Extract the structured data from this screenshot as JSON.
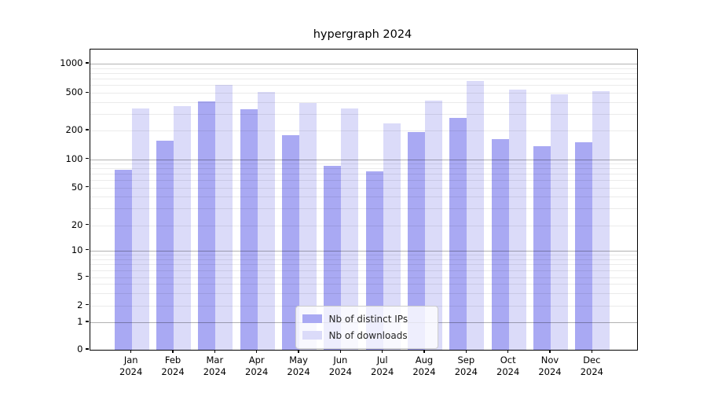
{
  "title": "hypergraph 2024",
  "chart_data": {
    "type": "bar",
    "categories": [
      "Jan",
      "Feb",
      "Mar",
      "Apr",
      "May",
      "Jun",
      "Jul",
      "Aug",
      "Sep",
      "Oct",
      "Nov",
      "Dec"
    ],
    "year_label": "2024",
    "series": [
      {
        "name": "Nb of distinct IPs",
        "color": "#a9a9f3",
        "values": [
          78,
          155,
          405,
          335,
          177,
          86,
          74,
          193,
          270,
          164,
          137,
          152
        ]
      },
      {
        "name": "Nb of downloads",
        "color": "#dbdbf9",
        "values": [
          345,
          365,
          600,
          510,
          390,
          345,
          240,
          415,
          665,
          540,
          480,
          525
        ]
      }
    ],
    "y_scale": "symlog",
    "yticks": [
      0,
      1,
      2,
      5,
      10,
      20,
      50,
      100,
      200,
      500,
      1000
    ],
    "ylim": [
      0,
      1400
    ],
    "grid": "horizontal major and minor",
    "legend_position": "lower center",
    "colors": {
      "spine": "#000000",
      "grid_major": "rgba(0,0,0,0.30)",
      "grid_minor": "rgba(0,0,0,0.08)"
    }
  }
}
